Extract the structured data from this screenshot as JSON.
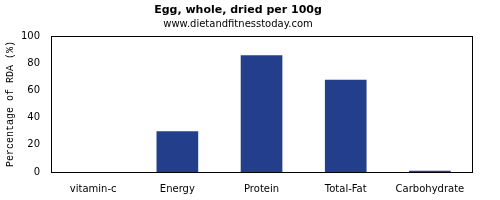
{
  "chart_data": {
    "type": "bar",
    "title": "Egg, whole, dried per 100g",
    "subtitle": "www.dietandfitnesstoday.com",
    "y_label": "Percentage of RDA (%)",
    "categories": [
      "vitamin-c",
      "Energy",
      "Protein",
      "Total-Fat",
      "Carbohydrate"
    ],
    "values": [
      0,
      30,
      86,
      68,
      1
    ],
    "color": "#233e8b",
    "ylim": [
      0,
      100
    ],
    "yticks": [
      0,
      20,
      40,
      60,
      80,
      100
    ],
    "grid": false
  }
}
